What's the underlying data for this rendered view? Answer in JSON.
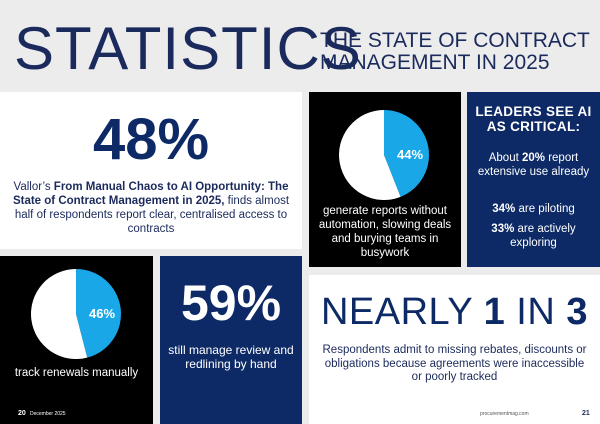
{
  "header": {
    "title": "STATISTICS",
    "subtitle": "THE STATE OF CONTRACT MANAGEMENT IN 2025"
  },
  "stat48": {
    "value": "48%",
    "desc_pre": "Vallor’s ",
    "desc_bold": "From Manual Chaos to AI Opportunity: The State of Contract Management in 2025,",
    "desc_post": " finds almost half of respondents report clear, centralised access to contracts"
  },
  "stat44": {
    "label": "44%",
    "caption": "generate reports without automation, slowing deals and burying teams in busywork"
  },
  "ai": {
    "heading": "LEADERS SEE AI AS CRITICAL:",
    "line1_pre": "About ",
    "line1_bold": "20%",
    "line1_post": " report extensive use already",
    "line2_bold": "34%",
    "line2_post": " are piloting",
    "line3_bold": "33%",
    "line3_post": " are actively exploring"
  },
  "stat46": {
    "label": "46%",
    "caption": "track renewals manually"
  },
  "stat59": {
    "value": "59%",
    "caption": "still manage review and redlining by hand"
  },
  "near": {
    "pre": "NEARLY ",
    "bold1": "1",
    "mid": " IN ",
    "bold2": "3",
    "caption": "Respondents admit to missing rebates, discounts or obligations because agreements were inaccessible or poorly tracked"
  },
  "footer": {
    "page_left": "20",
    "date": "December 2025",
    "site": "procurementmag.com",
    "page_right": "21"
  },
  "chart_data": [
    {
      "type": "pie",
      "values": [
        44,
        56
      ],
      "data_labels": [
        "44%"
      ],
      "colors": [
        "#1aa7e8",
        "#ffffff"
      ]
    },
    {
      "type": "pie",
      "values": [
        46,
        54
      ],
      "data_labels": [
        "46%"
      ],
      "colors": [
        "#1aa7e8",
        "#ffffff"
      ]
    }
  ],
  "colors": {
    "navy": "#0d2a66",
    "accent": "#1aa7e8",
    "background": "#ececec"
  }
}
